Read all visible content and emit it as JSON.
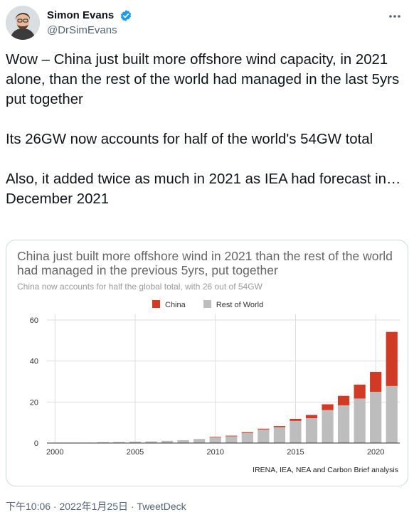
{
  "author": {
    "display_name": "Simon Evans",
    "handle": "@DrSimEvans",
    "verified": true,
    "avatar_icon": "avatar-photo-icon"
  },
  "tweet": {
    "text": "Wow – China just built more offshore wind capacity, in 2021 alone, than the rest of the world had managed in the last 5yrs put together\n\nIts 26GW now accounts for half of the world's 54GW total\n\nAlso, it added twice as much in 2021 as IEA had forecast in…December 2021",
    "footer": "下午10:06 · 2022年1月25日 · TweetDeck"
  },
  "colors": {
    "china": "#d13a25",
    "rest": "#bdbdbd",
    "verified": "#1d9bf0"
  },
  "chart_data": {
    "type": "bar",
    "stacked": true,
    "title": "China just built more offshore wind in 2021 than the rest of the world had managed in the previous 5yrs, put together",
    "subtitle": "China now accounts for half the global total, with 26 out of 54GW",
    "source": "IRENA, IEA, NEA and Carbon Brief analysis",
    "legend_position": "top",
    "categories": [
      2000,
      2001,
      2002,
      2003,
      2004,
      2005,
      2006,
      2007,
      2008,
      2009,
      2010,
      2011,
      2012,
      2013,
      2014,
      2015,
      2016,
      2017,
      2018,
      2019,
      2020,
      2021
    ],
    "x_tick_labels": [
      "2000",
      "2005",
      "2010",
      "2015",
      "2020"
    ],
    "y_ticks": [
      0,
      20,
      40,
      60
    ],
    "ylim": [
      0,
      60
    ],
    "grid": true,
    "series": [
      {
        "name": "Rest of World",
        "values": [
          0.1,
          0.1,
          0.2,
          0.4,
          0.5,
          0.7,
          0.8,
          1.1,
          1.4,
          2.0,
          2.7,
          3.3,
          4.9,
          6.6,
          7.7,
          10.8,
          12.1,
          16.1,
          18.4,
          21.7,
          25.0,
          27.8
        ]
      },
      {
        "name": "China",
        "values": [
          0,
          0,
          0,
          0,
          0,
          0,
          0,
          0,
          0,
          0,
          0.3,
          0.3,
          0.4,
          0.4,
          0.6,
          1.0,
          1.6,
          2.8,
          4.6,
          6.8,
          9.7,
          26.4
        ]
      }
    ]
  }
}
